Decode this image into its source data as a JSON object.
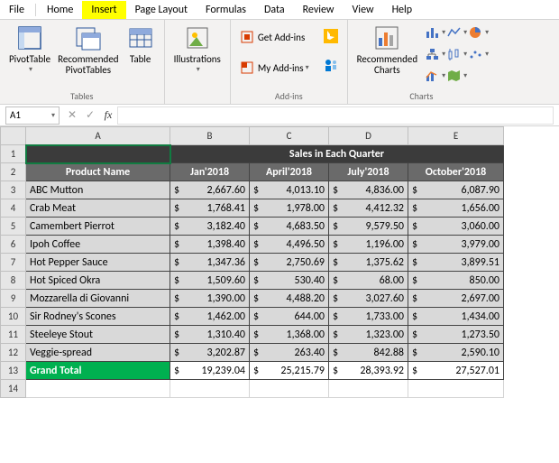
{
  "menu": {
    "items": [
      "File",
      "Home",
      "Insert",
      "Page Layout",
      "Formulas",
      "Data",
      "Review",
      "View",
      "Help"
    ],
    "highlighted_index": 2
  },
  "ribbon": {
    "tables": {
      "label": "Tables",
      "pivot": "PivotTable",
      "recpivot": "Recommended\nPivotTables",
      "table": "Table"
    },
    "illus": {
      "label": "Illustrations",
      "btn": "Illustrations"
    },
    "addins": {
      "label": "Add-ins",
      "get": "Get Add-ins",
      "my": "My Add-ins",
      "bing": "bing-icon"
    },
    "charts": {
      "label": "Charts",
      "rec": "Recommended\nCharts"
    }
  },
  "namebox": "A1",
  "sheet": {
    "title": "Sales in Each Quarter",
    "col_product": "Product Name",
    "months": [
      "Jan'2018",
      "April'2018",
      "July'2018",
      "October'2018"
    ],
    "rows": [
      {
        "name": "ABC Mutton",
        "v": [
          "2,667.60",
          "4,013.10",
          "4,836.00",
          "6,087.90"
        ]
      },
      {
        "name": "Crab Meat",
        "v": [
          "1,768.41",
          "1,978.00",
          "4,412.32",
          "1,656.00"
        ]
      },
      {
        "name": "Camembert Pierrot",
        "v": [
          "3,182.40",
          "4,683.50",
          "9,579.50",
          "3,060.00"
        ]
      },
      {
        "name": "Ipoh Coffee",
        "v": [
          "1,398.40",
          "4,496.50",
          "1,196.00",
          "3,979.00"
        ]
      },
      {
        "name": "Hot Pepper Sauce",
        "v": [
          "1,347.36",
          "2,750.69",
          "1,375.62",
          "3,899.51"
        ]
      },
      {
        "name": " Hot Spiced Okra",
        "v": [
          "1,509.60",
          "530.40",
          "68.00",
          "850.00"
        ]
      },
      {
        "name": "Mozzarella di Giovanni",
        "v": [
          "1,390.00",
          "4,488.20",
          "3,027.60",
          "2,697.00"
        ]
      },
      {
        "name": "Sir Rodney's Scones",
        "v": [
          "1,462.00",
          "644.00",
          "1,733.00",
          "1,434.00"
        ]
      },
      {
        "name": "Steeleye Stout",
        "v": [
          "1,310.40",
          "1,368.00",
          "1,323.00",
          "1,273.50"
        ]
      },
      {
        "name": "Veggie-spread",
        "v": [
          "3,202.87",
          "263.40",
          "842.88",
          "2,590.10"
        ]
      }
    ],
    "total_label": "Grand Total",
    "totals": [
      "19,239.04",
      "25,215.79",
      "28,393.92",
      "27,527.01"
    ],
    "currency": "$"
  },
  "colors": {
    "accent": "#107c41",
    "highlight": "#ffff00",
    "titlebg": "#3b3b3b",
    "hdrbg": "#6a6a6a",
    "databg": "#d9d9d9",
    "totalbg": "#00b050"
  }
}
